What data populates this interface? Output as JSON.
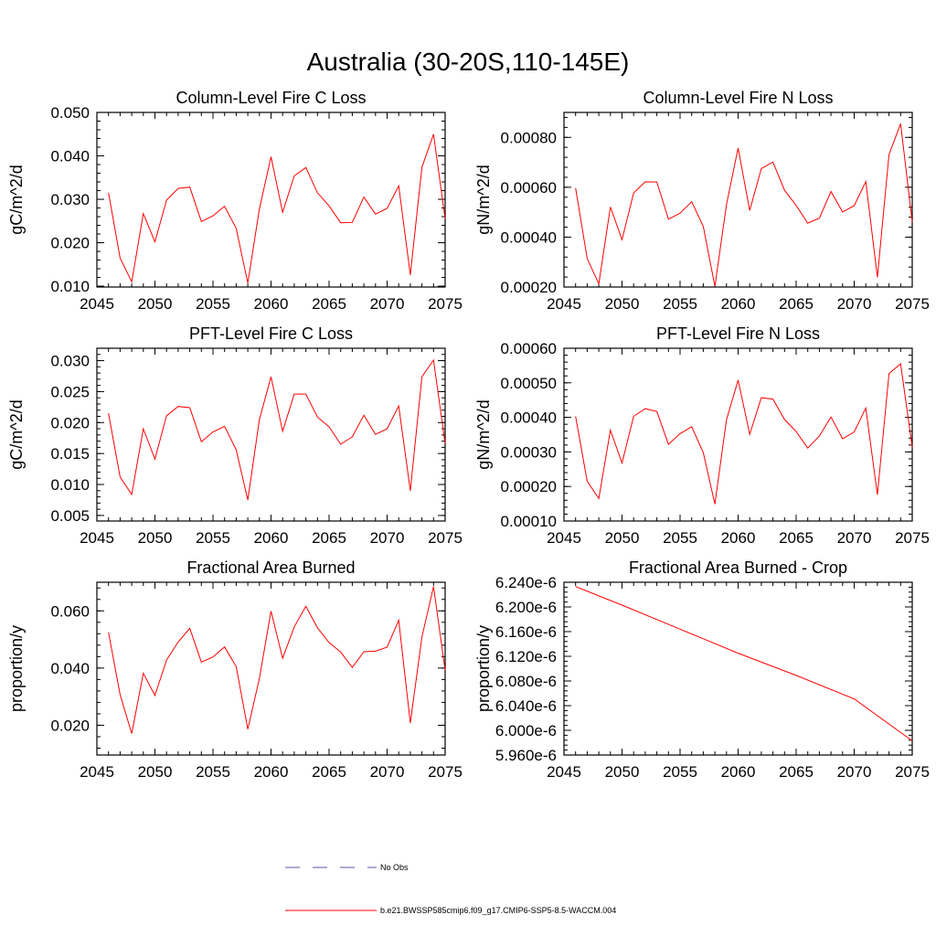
{
  "page_title": "Australia (30-20S,110-145E)",
  "colors": {
    "series": "#ff0000",
    "obs": "#5555aa",
    "axes": "#000000"
  },
  "chart_data": [
    {
      "id": "col-fire-c",
      "type": "line",
      "title": "Column-Level Fire C Loss",
      "ylabel": "gC/m^2/d",
      "xlabel": "",
      "xlim": [
        2045,
        2075
      ],
      "ylim": [
        0.0098,
        0.05
      ],
      "yticks": [
        0.01,
        0.02,
        0.03,
        0.04,
        0.05
      ],
      "ytick_labels": [
        "0.010",
        "0.020",
        "0.030",
        "0.040",
        "0.050"
      ],
      "xticks": [
        2045,
        2050,
        2055,
        2060,
        2065,
        2070,
        2075
      ],
      "xtick_labels": [
        "2045",
        "2050",
        "2055",
        "2060",
        "2065",
        "2070",
        "2075"
      ],
      "yminor": 4,
      "x": [
        2046,
        2047,
        2048,
        2049,
        2050,
        2051,
        2052,
        2053,
        2054,
        2055,
        2056,
        2057,
        2058,
        2059,
        2060,
        2061,
        2062,
        2063,
        2064,
        2065,
        2066,
        2067,
        2068,
        2069,
        2070,
        2071,
        2072,
        2073,
        2074,
        2075
      ],
      "values": [
        0.0315,
        0.0165,
        0.011,
        0.0267,
        0.0202,
        0.0298,
        0.0325,
        0.0328,
        0.0249,
        0.0262,
        0.0284,
        0.0233,
        0.0107,
        0.0278,
        0.0398,
        0.027,
        0.0354,
        0.0373,
        0.0315,
        0.0285,
        0.0246,
        0.0247,
        0.0305,
        0.0266,
        0.0279,
        0.0331,
        0.0126,
        0.0374,
        0.045,
        0.0255
      ]
    },
    {
      "id": "col-fire-n",
      "type": "line",
      "title": "Column-Level Fire N Loss",
      "ylabel": "gN/m^2/d",
      "xlabel": "",
      "xlim": [
        2045,
        2075
      ],
      "ylim": [
        0.0002,
        0.0009
      ],
      "yticks": [
        0.0002,
        0.0004,
        0.0006,
        0.0008
      ],
      "ytick_labels": [
        "0.00020",
        "0.00040",
        "0.00060",
        "0.00080"
      ],
      "xticks": [
        2045,
        2050,
        2055,
        2060,
        2065,
        2070,
        2075
      ],
      "xtick_labels": [
        "2045",
        "2050",
        "2055",
        "2060",
        "2065",
        "2070",
        "2075"
      ],
      "yminor": 4,
      "x": [
        2046,
        2047,
        2048,
        2049,
        2050,
        2051,
        2052,
        2053,
        2054,
        2055,
        2056,
        2057,
        2058,
        2059,
        2060,
        2061,
        2062,
        2063,
        2064,
        2065,
        2066,
        2067,
        2068,
        2069,
        2070,
        2071,
        2072,
        2073,
        2074,
        2075
      ],
      "values": [
        0.000597,
        0.000314,
        0.000213,
        0.000521,
        0.00039,
        0.000577,
        0.000622,
        0.000621,
        0.000472,
        0.000496,
        0.000542,
        0.000443,
        0.000203,
        0.000531,
        0.000757,
        0.000507,
        0.000675,
        0.000701,
        0.000588,
        0.000527,
        0.000456,
        0.000476,
        0.000583,
        0.000501,
        0.000526,
        0.000623,
        0.000239,
        0.000731,
        0.000855,
        0.00046
      ]
    },
    {
      "id": "pft-fire-c",
      "type": "line",
      "title": "PFT-Level Fire C Loss",
      "ylabel": "gC/m^2/d",
      "xlabel": "",
      "xlim": [
        2045,
        2075
      ],
      "ylim": [
        0.0041,
        0.032
      ],
      "yticks": [
        0.005,
        0.01,
        0.015,
        0.02,
        0.025,
        0.03
      ],
      "ytick_labels": [
        "0.005",
        "0.010",
        "0.015",
        "0.020",
        "0.025",
        "0.030"
      ],
      "xticks": [
        2045,
        2050,
        2055,
        2060,
        2065,
        2070,
        2075
      ],
      "xtick_labels": [
        "2045",
        "2050",
        "2055",
        "2060",
        "2065",
        "2070",
        "2075"
      ],
      "yminor": 4,
      "x": [
        2046,
        2047,
        2048,
        2049,
        2050,
        2051,
        2052,
        2053,
        2054,
        2055,
        2056,
        2057,
        2058,
        2059,
        2060,
        2061,
        2062,
        2063,
        2064,
        2065,
        2066,
        2067,
        2068,
        2069,
        2070,
        2071,
        2072,
        2073,
        2074,
        2075
      ],
      "values": [
        0.0215,
        0.0112,
        0.0084,
        0.019,
        0.0141,
        0.0211,
        0.0226,
        0.0224,
        0.0169,
        0.0185,
        0.0194,
        0.0156,
        0.0075,
        0.0205,
        0.0274,
        0.0186,
        0.0246,
        0.0246,
        0.0209,
        0.0193,
        0.0165,
        0.0177,
        0.0212,
        0.0181,
        0.019,
        0.0227,
        0.009,
        0.0274,
        0.0301,
        0.0166
      ]
    },
    {
      "id": "pft-fire-n",
      "type": "line",
      "title": "PFT-Level Fire N Loss",
      "ylabel": "gN/m^2/d",
      "xlabel": "",
      "xlim": [
        2045,
        2075
      ],
      "ylim": [
        0.0001,
        0.0006
      ],
      "yticks": [
        0.0001,
        0.0002,
        0.0003,
        0.0004,
        0.0005,
        0.0006
      ],
      "ytick_labels": [
        "0.00010",
        "0.00020",
        "0.00030",
        "0.00040",
        "0.00050",
        "0.00060"
      ],
      "xticks": [
        2045,
        2050,
        2055,
        2060,
        2065,
        2070,
        2075
      ],
      "xtick_labels": [
        "2045",
        "2050",
        "2055",
        "2060",
        "2065",
        "2070",
        "2075"
      ],
      "yminor": 4,
      "x": [
        2046,
        2047,
        2048,
        2049,
        2050,
        2051,
        2052,
        2053,
        2054,
        2055,
        2056,
        2057,
        2058,
        2059,
        2060,
        2061,
        2062,
        2063,
        2064,
        2065,
        2066,
        2067,
        2068,
        2069,
        2070,
        2071,
        2072,
        2073,
        2074,
        2075
      ],
      "values": [
        0.000403,
        0.000215,
        0.000165,
        0.000363,
        0.000268,
        0.000403,
        0.000425,
        0.000417,
        0.000322,
        0.000353,
        0.000373,
        0.000298,
        0.000149,
        0.000393,
        0.000508,
        0.000351,
        0.000457,
        0.000453,
        0.000394,
        0.000359,
        0.000311,
        0.000346,
        0.000401,
        0.000338,
        0.000358,
        0.000427,
        0.000176,
        0.000527,
        0.000555,
        0.000313
      ]
    },
    {
      "id": "frac-area-burned",
      "type": "line",
      "title": "Fractional Area Burned",
      "ylabel": "proportion/y",
      "xlabel": "",
      "xlim": [
        2045,
        2075
      ],
      "ylim": [
        0.0096,
        0.07
      ],
      "yticks": [
        0.02,
        0.04,
        0.06
      ],
      "ytick_labels": [
        "0.020",
        "0.040",
        "0.060"
      ],
      "xticks": [
        2045,
        2050,
        2055,
        2060,
        2065,
        2070,
        2075
      ],
      "xtick_labels": [
        "2045",
        "2050",
        "2055",
        "2060",
        "2065",
        "2070",
        "2075"
      ],
      "yminor": 4,
      "x": [
        2046,
        2047,
        2048,
        2049,
        2050,
        2051,
        2052,
        2053,
        2054,
        2055,
        2056,
        2057,
        2058,
        2059,
        2060,
        2061,
        2062,
        2063,
        2064,
        2065,
        2066,
        2067,
        2068,
        2069,
        2070,
        2071,
        2072,
        2073,
        2074,
        2075
      ],
      "values": [
        0.0525,
        0.0307,
        0.0171,
        0.0382,
        0.0304,
        0.0428,
        0.0491,
        0.0539,
        0.0421,
        0.0439,
        0.0474,
        0.0405,
        0.0186,
        0.0364,
        0.0599,
        0.0434,
        0.0544,
        0.0616,
        0.0541,
        0.0489,
        0.0456,
        0.0402,
        0.0457,
        0.0459,
        0.0473,
        0.0567,
        0.0208,
        0.0509,
        0.0685,
        0.0392
      ]
    },
    {
      "id": "frac-area-burned-crop",
      "type": "line",
      "title": "Fractional Area Burned - Crop",
      "ylabel": "proportion/y",
      "xlabel": "",
      "xlim": [
        2045,
        2075
      ],
      "ylim": [
        5.96e-06,
        6.24e-06
      ],
      "yticks": [
        5.96e-06,
        6e-06,
        6.04e-06,
        6.08e-06,
        6.12e-06,
        6.16e-06,
        6.2e-06,
        6.24e-06
      ],
      "ytick_labels": [
        "5.960e-6",
        "6.000e-6",
        "6.040e-6",
        "6.080e-6",
        "6.120e-6",
        "6.160e-6",
        "6.200e-6",
        "6.240e-6"
      ],
      "xticks": [
        2045,
        2050,
        2055,
        2060,
        2065,
        2070,
        2075
      ],
      "xtick_labels": [
        "2045",
        "2050",
        "2055",
        "2060",
        "2065",
        "2070",
        "2075"
      ],
      "yminor": 4,
      "x": [
        2046,
        2050,
        2055,
        2060,
        2065,
        2070,
        2075
      ],
      "values": [
        6.233e-06,
        6.203e-06,
        6.164e-06,
        6.125e-06,
        6.089e-06,
        6.051e-06,
        5.983e-06
      ]
    }
  ],
  "legend": {
    "obs_label": "No Obs",
    "model_label": "b.e21.BWSSP585cmip6.f09_g17.CMIP6-SSP5-8.5-WACCM.004"
  }
}
